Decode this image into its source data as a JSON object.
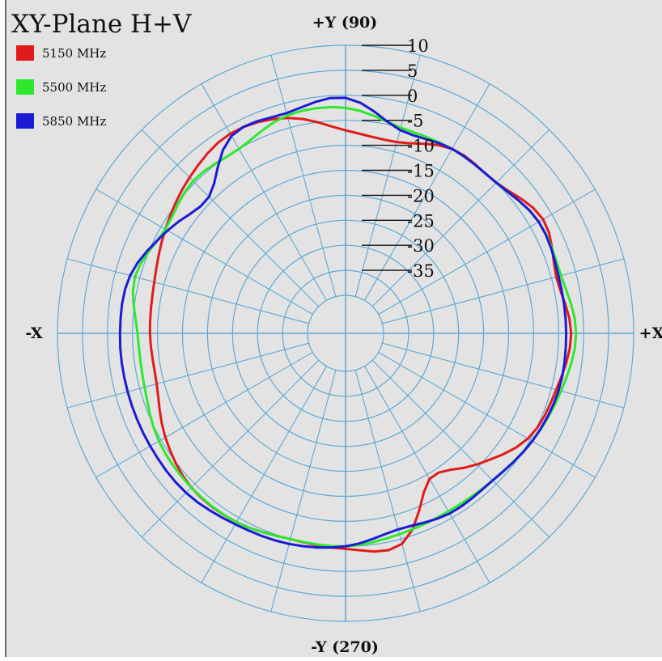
{
  "chart_data": {
    "type": "polar",
    "title": "XY-Plane  H+V",
    "axis_labels": {
      "top": "+Y (90)",
      "bottom": "-Y (270)",
      "left": "-X",
      "right": "+X"
    },
    "radial_ticks": [
      "10",
      "5",
      "0",
      "-5",
      "-10",
      "-15",
      "-20",
      "-25",
      "-30",
      "-35"
    ],
    "radial_range": [
      -40,
      10
    ],
    "angular_grid_step_deg": 15,
    "legend_position": "top-left",
    "grid": true,
    "series": [
      {
        "name": "5150 MHz",
        "color": "#e11b1b",
        "angles": [
          0,
          15,
          30,
          45,
          60,
          75,
          90,
          105,
          120,
          135,
          150,
          165,
          180,
          195,
          210,
          225,
          240,
          255,
          270,
          285,
          300,
          315,
          330,
          345
        ],
        "values": [
          -2.5,
          -4,
          -2,
          -5,
          -5,
          -8,
          -7,
          -3,
          -1.5,
          -3.5,
          -6,
          -8,
          -8.5,
          -8.5,
          -6,
          -4,
          -4,
          -5,
          -4.5,
          -4,
          -14,
          -10.5,
          -5.5,
          -4
        ]
      },
      {
        "name": "5500 MHz",
        "color": "#2ee82e",
        "angles": [
          0,
          15,
          30,
          45,
          60,
          75,
          90,
          105,
          120,
          135,
          150,
          165,
          180,
          195,
          210,
          225,
          240,
          255,
          270,
          285,
          300,
          315,
          330,
          345
        ],
        "values": [
          -1.5,
          -3,
          -3,
          -5,
          -5,
          -5,
          -2.5,
          -2.5,
          -5,
          -4.5,
          -6,
          -4,
          -6,
          -6,
          -4.5,
          -4,
          -4,
          -5,
          -5,
          -6,
          -6.5,
          -6,
          -4.5,
          -3
        ]
      },
      {
        "name": "5850 MHz",
        "color": "#1b1bd6",
        "angles": [
          0,
          15,
          30,
          45,
          60,
          75,
          90,
          105,
          120,
          135,
          150,
          165,
          180,
          195,
          210,
          225,
          240,
          255,
          270,
          285,
          300,
          315,
          330,
          345
        ],
        "values": [
          -3.5,
          -3.5,
          -3,
          -5,
          -5,
          -5.5,
          -0.5,
          -2,
          -2,
          -9,
          -6.5,
          -3,
          -2.5,
          -2.5,
          -2.5,
          -2.5,
          -3.5,
          -4,
          -5,
          -7,
          -6,
          -6,
          -4.5,
          -3.5
        ]
      }
    ]
  }
}
